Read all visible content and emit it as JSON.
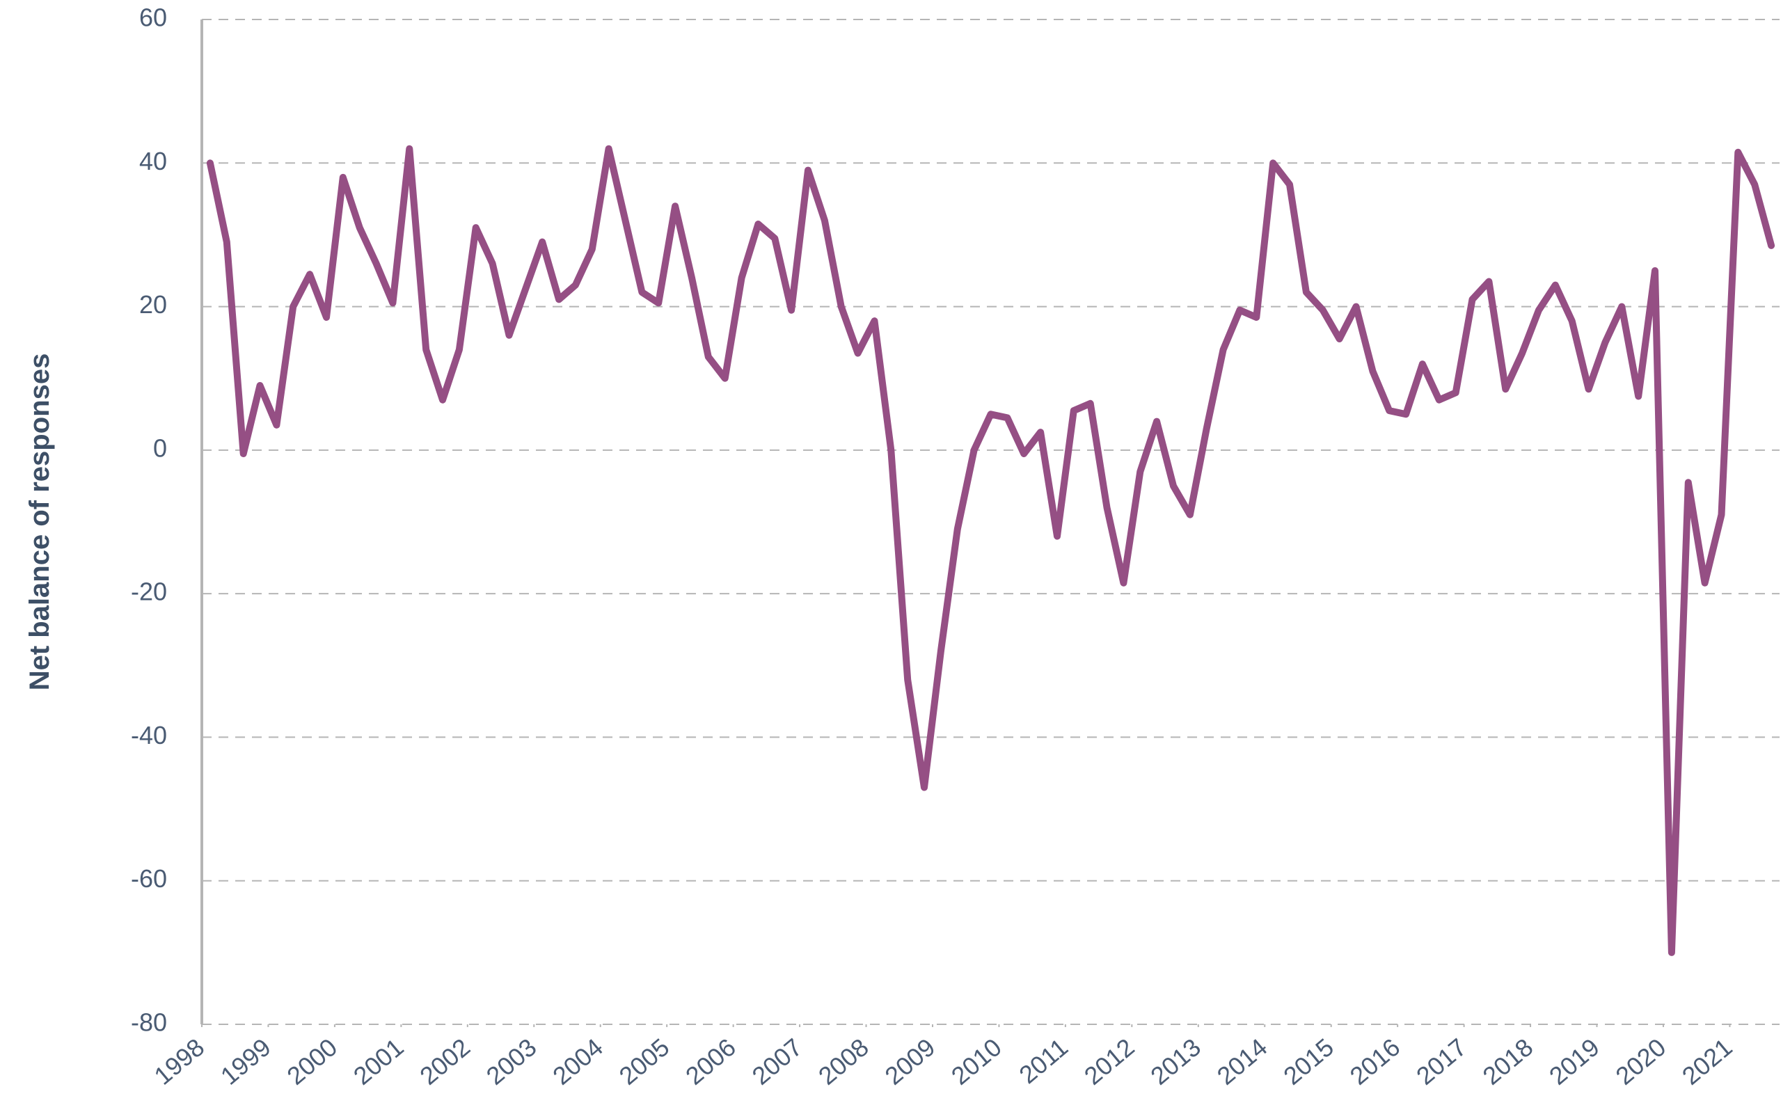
{
  "chart_data": {
    "type": "line",
    "y_label": "Net balance of responses",
    "x": [
      1998.125,
      1998.375,
      1998.625,
      1998.875,
      1999.125,
      1999.375,
      1999.625,
      1999.875,
      2000.125,
      2000.375,
      2000.625,
      2000.875,
      2001.125,
      2001.375,
      2001.625,
      2001.875,
      2002.125,
      2002.375,
      2002.625,
      2002.875,
      2003.125,
      2003.375,
      2003.625,
      2003.875,
      2004.125,
      2004.375,
      2004.625,
      2004.875,
      2005.125,
      2005.375,
      2005.625,
      2005.875,
      2006.125,
      2006.375,
      2006.625,
      2006.875,
      2007.125,
      2007.375,
      2007.625,
      2007.875,
      2008.125,
      2008.375,
      2008.625,
      2008.875,
      2009.125,
      2009.375,
      2009.625,
      2009.875,
      2010.125,
      2010.375,
      2010.625,
      2010.875,
      2011.125,
      2011.375,
      2011.625,
      2011.875,
      2012.125,
      2012.375,
      2012.625,
      2012.875,
      2013.125,
      2013.375,
      2013.625,
      2013.875,
      2014.125,
      2014.375,
      2014.625,
      2014.875,
      2015.125,
      2015.375,
      2015.625,
      2015.875,
      2016.125,
      2016.375,
      2016.625,
      2016.875,
      2017.125,
      2017.375,
      2017.625,
      2017.875,
      2018.125,
      2018.375,
      2018.625,
      2018.875,
      2019.125,
      2019.375,
      2019.625,
      2019.875,
      2020.125,
      2020.375,
      2020.625,
      2020.875,
      2021.125,
      2021.375,
      2021.625
    ],
    "series": [
      {
        "name": "Net balance",
        "color": "#954f84",
        "values": [
          40,
          29,
          -0.5,
          9,
          3.5,
          20,
          24.5,
          18.5,
          38,
          31,
          26,
          20.5,
          42,
          14,
          7,
          14,
          31,
          26,
          16,
          22.5,
          29,
          21,
          23,
          28,
          42,
          32,
          22,
          20.5,
          34,
          24,
          13,
          10,
          24,
          31.5,
          29.5,
          19.5,
          39,
          32,
          20,
          13.5,
          18,
          0,
          -32,
          -47,
          -28,
          -11,
          0,
          5,
          4.5,
          -0.5,
          2.5,
          -12,
          5.5,
          6.5,
          -8,
          -18.5,
          -3,
          4,
          -5,
          -9,
          3,
          14,
          19.5,
          18.5,
          40,
          37,
          22,
          19.5,
          15.5,
          20,
          11,
          5.5,
          5,
          12,
          7,
          8,
          21,
          23.5,
          8.5,
          13.5,
          19.5,
          23,
          18,
          8.5,
          15,
          20,
          7.5,
          25,
          -70,
          -4.5,
          -18.5,
          -9,
          41.5,
          37,
          28.5
        ]
      }
    ],
    "xlim": [
      1998,
      2021.75
    ],
    "xticks": [
      1998,
      1999,
      2000,
      2001,
      2002,
      2003,
      2004,
      2005,
      2006,
      2007,
      2008,
      2009,
      2010,
      2011,
      2012,
      2013,
      2014,
      2015,
      2016,
      2017,
      2018,
      2019,
      2020,
      2021
    ],
    "ylim": [
      -80,
      60
    ],
    "yticks": [
      -80,
      -60,
      -40,
      -20,
      0,
      20,
      40,
      60
    ],
    "grid": true
  }
}
